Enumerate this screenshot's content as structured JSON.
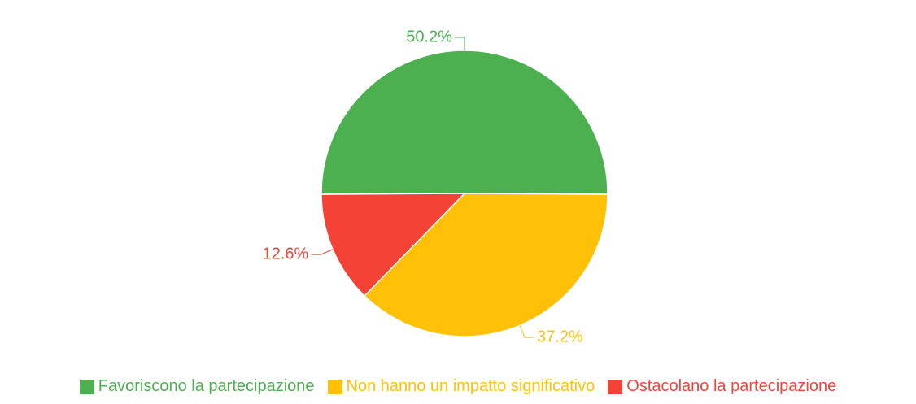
{
  "chart_data": {
    "type": "pie",
    "categories": [
      "Favoriscono la partecipazione",
      "Non hanno un impatto significativo",
      "Ostacolano la partecipazione"
    ],
    "values": [
      50.2,
      37.2,
      12.6
    ],
    "value_labels": [
      "50.2%",
      "37.2%",
      "12.6%"
    ],
    "colors": [
      "#4caf50",
      "#ffc107",
      "#f44336"
    ],
    "legend": "bottom"
  }
}
